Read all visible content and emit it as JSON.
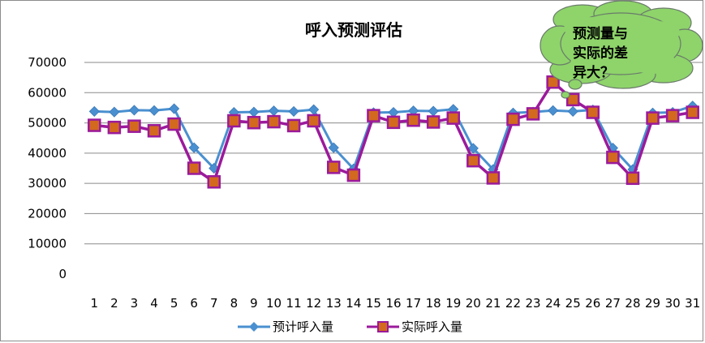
{
  "chart_data": {
    "type": "line",
    "title": "呼入预测评估",
    "xlabel": "",
    "ylabel": "",
    "ylim": [
      0,
      70000
    ],
    "yticks": [
      0,
      10000,
      20000,
      30000,
      40000,
      50000,
      60000,
      70000
    ],
    "grid": true,
    "legend_position": "bottom",
    "categories": [
      "1",
      "2",
      "3",
      "4",
      "5",
      "6",
      "7",
      "8",
      "9",
      "10",
      "11",
      "12",
      "13",
      "14",
      "15",
      "16",
      "17",
      "18",
      "19",
      "20",
      "21",
      "22",
      "23",
      "24",
      "25",
      "26",
      "27",
      "28",
      "29",
      "30",
      "31"
    ],
    "series": [
      {
        "name": "预计呼入量",
        "color": "#4a90d0",
        "marker": "diamond",
        "values": [
          53800,
          53600,
          54200,
          54100,
          54700,
          41800,
          35000,
          53500,
          53600,
          54000,
          53800,
          54400,
          41800,
          34800,
          53400,
          53500,
          54000,
          53900,
          54500,
          41600,
          34600,
          53300,
          53600,
          54100,
          53800,
          54300,
          41700,
          34600,
          53300,
          53500,
          55600
        ]
      },
      {
        "name": "实际呼入量",
        "color": "#9b1a9b",
        "marker_fill": "#d2691e",
        "marker": "square",
        "values": [
          49200,
          48500,
          48900,
          47400,
          49600,
          35000,
          30500,
          50700,
          50100,
          50400,
          49100,
          50700,
          35300,
          32700,
          52400,
          50200,
          50900,
          50300,
          51600,
          37500,
          31800,
          51200,
          53000,
          63500,
          57700,
          53500,
          38600,
          31700,
          51600,
          52400,
          53500
        ]
      }
    ],
    "annotation": {
      "text_lines": [
        "预测量与",
        "实际的差",
        "异大？"
      ],
      "fill_color": "#8ed46a",
      "target_category": "25"
    }
  }
}
